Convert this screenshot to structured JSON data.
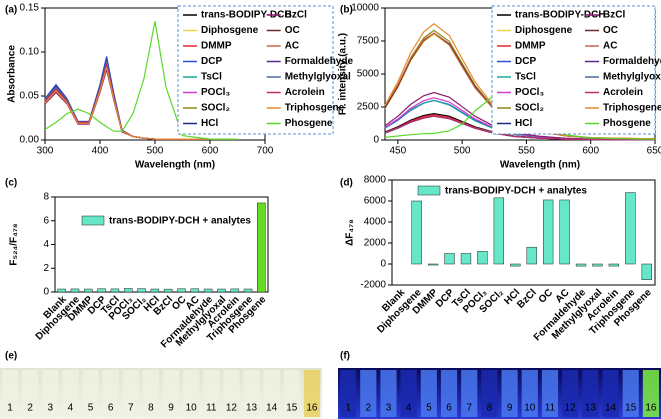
{
  "chart_data": [
    {
      "type": "line",
      "panel_label": "(a)",
      "y_label": "Absorbance",
      "x_label": "Wavelength (nm)",
      "x": [
        300,
        320,
        340,
        360,
        380,
        400,
        412,
        425,
        440,
        460,
        480,
        500,
        520,
        550,
        600,
        650
      ],
      "xlim": [
        300,
        700
      ],
      "xticks": [
        300,
        400,
        500,
        600,
        700
      ],
      "ylim": [
        0,
        0.15
      ],
      "yticks": [
        {
          "value": 0,
          "label": "0.00"
        },
        {
          "value": 0.05,
          "label": "0.05"
        },
        {
          "value": 0.1,
          "label": "0.10"
        },
        {
          "value": 0.15,
          "label": "0.15"
        }
      ],
      "series": [
        {
          "name": "trans-BODIPY-DCH",
          "color": "#000000",
          "values": [
            0.045,
            0.06,
            0.045,
            0.02,
            0.02,
            0.06,
            0.09,
            0.05,
            0.01,
            0.004,
            0.002,
            0.001,
            0.001,
            0.001,
            0.001,
            0.001
          ]
        },
        {
          "name": "Diphosgene",
          "color": "#e8d44d",
          "values": [
            0.044,
            0.058,
            0.044,
            0.02,
            0.02,
            0.058,
            0.088,
            0.049,
            0.01,
            0.004,
            0.002,
            0.001,
            0.001,
            0.001,
            0.001,
            0.001
          ]
        },
        {
          "name": "DMMP",
          "color": "#e8262a",
          "values": [
            0.046,
            0.062,
            0.046,
            0.021,
            0.021,
            0.062,
            0.093,
            0.052,
            0.011,
            0.004,
            0.002,
            0.001,
            0.001,
            0.001,
            0.001,
            0.001
          ]
        },
        {
          "name": "DCP",
          "color": "#2a4fd6",
          "values": [
            0.047,
            0.063,
            0.047,
            0.021,
            0.021,
            0.063,
            0.095,
            0.053,
            0.011,
            0.004,
            0.002,
            0.001,
            0.001,
            0.001,
            0.001,
            0.001
          ]
        },
        {
          "name": "TsCl",
          "color": "#17a89a",
          "values": [
            0.043,
            0.057,
            0.043,
            0.019,
            0.019,
            0.057,
            0.085,
            0.047,
            0.01,
            0.004,
            0.002,
            0.001,
            0.001,
            0.001,
            0.001,
            0.001
          ]
        },
        {
          "name": "POCl₃",
          "color": "#d63ad0",
          "values": [
            0.042,
            0.055,
            0.042,
            0.019,
            0.019,
            0.055,
            0.082,
            0.046,
            0.01,
            0.004,
            0.002,
            0.001,
            0.001,
            0.001,
            0.001,
            0.001
          ]
        },
        {
          "name": "SOCl₂",
          "color": "#8a8a1a",
          "values": [
            0.045,
            0.059,
            0.045,
            0.02,
            0.02,
            0.059,
            0.089,
            0.05,
            0.01,
            0.004,
            0.002,
            0.001,
            0.001,
            0.001,
            0.001,
            0.001
          ]
        },
        {
          "name": "HCl",
          "color": "#1a2a8a",
          "values": [
            0.046,
            0.061,
            0.046,
            0.02,
            0.02,
            0.061,
            0.091,
            0.051,
            0.011,
            0.004,
            0.002,
            0.001,
            0.001,
            0.001,
            0.001,
            0.001
          ]
        },
        {
          "name": "BzCl",
          "color": "#8a1a6a",
          "values": [
            0.041,
            0.054,
            0.041,
            0.018,
            0.018,
            0.054,
            0.08,
            0.045,
            0.009,
            0.004,
            0.002,
            0.001,
            0.001,
            0.001,
            0.001,
            0.001
          ]
        },
        {
          "name": "OC",
          "color": "#6a2a2a",
          "values": [
            0.044,
            0.057,
            0.044,
            0.019,
            0.019,
            0.057,
            0.086,
            0.048,
            0.01,
            0.004,
            0.002,
            0.001,
            0.001,
            0.001,
            0.001,
            0.001
          ]
        },
        {
          "name": "AC",
          "color": "#c8684a",
          "values": [
            0.043,
            0.056,
            0.043,
            0.019,
            0.019,
            0.056,
            0.084,
            0.047,
            0.01,
            0.004,
            0.002,
            0.001,
            0.001,
            0.001,
            0.001,
            0.001
          ]
        },
        {
          "name": "Formaldehyde",
          "color": "#5a2a8a",
          "values": [
            0.045,
            0.06,
            0.045,
            0.02,
            0.02,
            0.06,
            0.087,
            0.049,
            0.01,
            0.004,
            0.002,
            0.001,
            0.001,
            0.001,
            0.001,
            0.001
          ]
        },
        {
          "name": "Methylglyoxal",
          "color": "#4a6a9a",
          "values": [
            0.046,
            0.06,
            0.046,
            0.02,
            0.02,
            0.06,
            0.09,
            0.05,
            0.01,
            0.004,
            0.002,
            0.001,
            0.001,
            0.001,
            0.001,
            0.001
          ]
        },
        {
          "name": "Acrolein",
          "color": "#c02a6a",
          "values": [
            0.044,
            0.058,
            0.044,
            0.02,
            0.02,
            0.058,
            0.087,
            0.048,
            0.01,
            0.004,
            0.002,
            0.001,
            0.001,
            0.001,
            0.001,
            0.001
          ]
        },
        {
          "name": "Triphosgene",
          "color": "#e88a2a",
          "values": [
            0.042,
            0.056,
            0.042,
            0.019,
            0.019,
            0.056,
            0.083,
            0.046,
            0.01,
            0.004,
            0.002,
            0.001,
            0.001,
            0.001,
            0.001,
            0.001
          ]
        },
        {
          "name": "Phosgene",
          "color": "#5ad82a",
          "values": [
            0.012,
            0.02,
            0.03,
            0.035,
            0.03,
            0.02,
            0.015,
            0.01,
            0.01,
            0.03,
            0.07,
            0.135,
            0.06,
            0.005,
            0.001,
            0.001
          ]
        }
      ]
    },
    {
      "type": "line",
      "panel_label": "(b)",
      "y_label": "Fl. intensity (a.u.)",
      "x_label": "Wavelength (nm)",
      "x": [
        440,
        450,
        460,
        470,
        478,
        490,
        500,
        510,
        524,
        540,
        560,
        580,
        600,
        650
      ],
      "xlim": [
        440,
        650
      ],
      "xticks": [
        450,
        500,
        550,
        600,
        650
      ],
      "ylim": [
        0,
        10000
      ],
      "yticks": [
        0,
        2500,
        5000,
        7500,
        10000
      ],
      "series": [
        {
          "name": "trans-BODIPY-DCH",
          "color": "#000000",
          "values": [
            600,
            1000,
            1500,
            1860,
            2000,
            1800,
            1400,
            1000,
            600,
            300,
            160,
            80,
            40,
            20
          ]
        },
        {
          "name": "Diphosgene",
          "color": "#e8d44d",
          "values": [
            2400,
            4000,
            6000,
            7440,
            8000,
            7200,
            5600,
            4000,
            2400,
            1200,
            640,
            320,
            160,
            80
          ]
        },
        {
          "name": "DMMP",
          "color": "#e8262a",
          "values": [
            570,
            950,
            1430,
            1770,
            1900,
            1710,
            1330,
            950,
            570,
            290,
            150,
            80,
            40,
            20
          ]
        },
        {
          "name": "DCP",
          "color": "#2a4fd6",
          "values": [
            900,
            1500,
            2250,
            2790,
            3000,
            2700,
            2100,
            1500,
            900,
            450,
            240,
            120,
            60,
            30
          ]
        },
        {
          "name": "TsCl",
          "color": "#17a89a",
          "values": [
            950,
            1550,
            2300,
            2800,
            3000,
            2650,
            2050,
            1450,
            880,
            440,
            230,
            110,
            55,
            25
          ]
        },
        {
          "name": "POCl₃",
          "color": "#d63ad0",
          "values": [
            960,
            1600,
            2400,
            2980,
            3200,
            2880,
            2240,
            1600,
            960,
            480,
            260,
            130,
            60,
            30
          ]
        },
        {
          "name": "SOCl₂",
          "color": "#8a8a1a",
          "values": [
            2490,
            4150,
            6230,
            7720,
            8300,
            7470,
            5810,
            4150,
            2490,
            1250,
            660,
            330,
            170,
            80
          ]
        },
        {
          "name": "HCl",
          "color": "#1a2a8a",
          "values": [
            540,
            900,
            1350,
            1670,
            1800,
            1620,
            1260,
            900,
            540,
            270,
            140,
            70,
            40,
            20
          ]
        },
        {
          "name": "BzCl",
          "color": "#8a1a6a",
          "values": [
            1080,
            1800,
            2700,
            3350,
            3600,
            3240,
            2520,
            1800,
            1080,
            540,
            290,
            140,
            70,
            40
          ]
        },
        {
          "name": "OC",
          "color": "#6a2a2a",
          "values": [
            2430,
            4050,
            6080,
            7530,
            8100,
            7290,
            5670,
            4050,
            2430,
            1220,
            650,
            320,
            160,
            80
          ]
        },
        {
          "name": "AC",
          "color": "#c8684a",
          "values": [
            2600,
            4200,
            6200,
            7600,
            8100,
            7200,
            5550,
            3950,
            2400,
            1200,
            640,
            320,
            160,
            80
          ]
        },
        {
          "name": "Formaldehyde",
          "color": "#5a2a8a",
          "values": [
            560,
            920,
            1370,
            1680,
            1800,
            1610,
            1250,
            890,
            530,
            270,
            140,
            70,
            40,
            20
          ]
        },
        {
          "name": "Methylglyoxal",
          "color": "#4a6a9a",
          "values": [
            530,
            890,
            1340,
            1660,
            1800,
            1630,
            1270,
            910,
            550,
            280,
            150,
            70,
            40,
            20
          ]
        },
        {
          "name": "Acrolein",
          "color": "#c02a6a",
          "values": [
            550,
            910,
            1360,
            1670,
            1800,
            1620,
            1260,
            900,
            540,
            270,
            140,
            70,
            40,
            20
          ]
        },
        {
          "name": "Triphosgene",
          "color": "#e88a2a",
          "values": [
            2640,
            4400,
            6600,
            8180,
            8800,
            7920,
            6160,
            4400,
            2640,
            1320,
            700,
            350,
            180,
            90
          ]
        },
        {
          "name": "Phosgene",
          "color": "#5ad82a",
          "values": [
            200,
            300,
            400,
            480,
            500,
            700,
            1200,
            2200,
            3300,
            2200,
            900,
            400,
            150,
            50
          ]
        }
      ]
    },
    {
      "type": "bar",
      "panel_label": "(c)",
      "y_label": "F₅₂₄/F₄₇₈",
      "categories": [
        "Blank",
        "Diphosgene",
        "DMMP",
        "DCP",
        "TsCl",
        "POCl₃",
        "SOCl₂",
        "HCl",
        "BzCl",
        "OC",
        "AC",
        "Formaldehyde",
        "Methylglyoxal",
        "Acrolein",
        "Triphosgene",
        "Phosgene"
      ],
      "ylim": [
        0,
        8
      ],
      "yticks": [
        0,
        2,
        4,
        6,
        8
      ],
      "series": [
        {
          "name": "trans-BODIPY-DCH + analytes",
          "color": "#66e8c8",
          "colors": [
            "#66e8c8",
            "#66e8c8",
            "#66e8c8",
            "#66e8c8",
            "#66e8c8",
            "#66e8c8",
            "#66e8c8",
            "#66e8c8",
            "#66e8c8",
            "#66e8c8",
            "#66e8c8",
            "#66e8c8",
            "#66e8c8",
            "#66e8c8",
            "#66e8c8",
            "#66dd22"
          ],
          "values": [
            0.25,
            0.26,
            0.25,
            0.27,
            0.26,
            0.3,
            0.28,
            0.25,
            0.24,
            0.27,
            0.27,
            0.25,
            0.25,
            0.26,
            0.25,
            7.5
          ]
        }
      ]
    },
    {
      "type": "bar",
      "panel_label": "(d)",
      "y_label": "ΔF₄₇₈",
      "categories": [
        "Blank",
        "Diphosgene",
        "DMMP",
        "DCP",
        "TsCl",
        "POCl₃",
        "SOCl₂",
        "HCl",
        "BzCl",
        "OC",
        "AC",
        "Formaldehyde",
        "Methylglyoxal",
        "Acrolein",
        "Triphosgene",
        "Phosgene"
      ],
      "ylim": [
        -2000,
        8000
      ],
      "yticks": [
        -2000,
        0,
        2000,
        4000,
        6000,
        8000
      ],
      "series": [
        {
          "name": "trans-BODIPY-DCH + analytes",
          "color": "#66e8c8",
          "values": [
            0,
            6000,
            -100,
            1000,
            1000,
            1200,
            6300,
            -200,
            1600,
            6100,
            6100,
            -200,
            -200,
            -200,
            6800,
            -1500
          ]
        }
      ]
    }
  ],
  "photos": [
    {
      "panel_label": "(e)",
      "lanes": [
        "1",
        "2",
        "3",
        "4",
        "5",
        "6",
        "7",
        "8",
        "9",
        "10",
        "11",
        "12",
        "13",
        "14",
        "15",
        "16"
      ]
    },
    {
      "panel_label": "(f)",
      "lanes": [
        "1",
        "2",
        "3",
        "4",
        "5",
        "6",
        "7",
        "8",
        "9",
        "10",
        "11",
        "12",
        "13",
        "14",
        "15",
        "16"
      ]
    }
  ]
}
